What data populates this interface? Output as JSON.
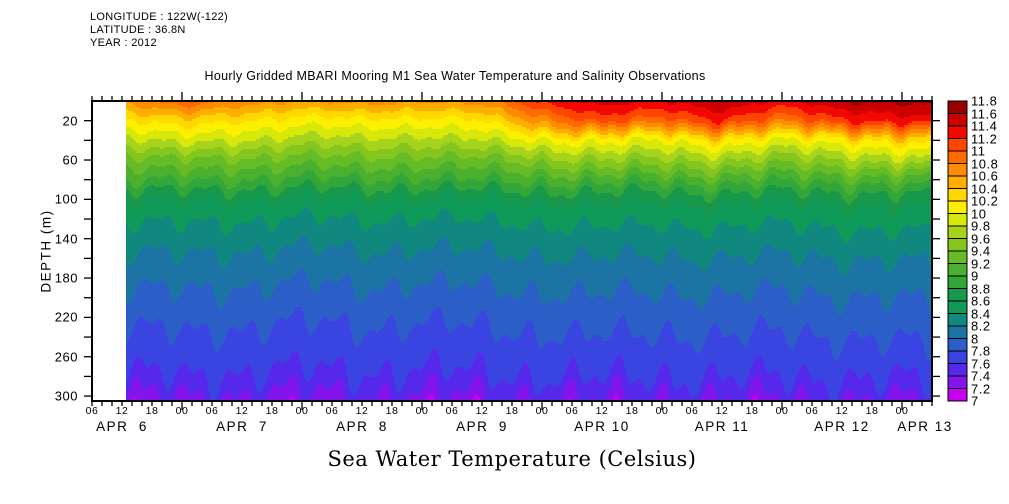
{
  "page": {
    "background": "#FFFFFF"
  },
  "header": {
    "lines": [
      "LONGITUDE : 122W(-122)",
      "LATITUDE : 36.8N",
      "YEAR : 2012"
    ]
  },
  "title": "Hourly Gridded MBARI Mooring M1 Sea Water Temperature and Salinity Observations",
  "footer_label": "Sea Water Temperature (Celsius)",
  "y_axis": {
    "title": "DEPTH (m)",
    "tick_labels": [
      "20",
      "60",
      "100",
      "140",
      "180",
      "220",
      "260",
      "300"
    ],
    "labeled_step_m": 40,
    "minor_step_m": 20,
    "range_m": [
      0,
      305
    ]
  },
  "x_axis": {
    "hour_labels": [
      "06",
      "12",
      "18",
      "00",
      "06",
      "12",
      "18",
      "00",
      "06",
      "12",
      "18",
      "00",
      "06",
      "12",
      "18",
      "00",
      "06",
      "12",
      "18",
      "00",
      "06",
      "12",
      "18",
      "00",
      "06",
      "12",
      "18",
      "00"
    ],
    "day_labels": [
      "APR  6",
      "APR  7",
      "APR  8",
      "APR  9",
      "APR 10",
      "APR 11",
      "APR 12",
      "APR 13"
    ],
    "label_step_h": 6,
    "minor_tick_h": 2,
    "day_tick_h": 24
  },
  "colorbar": {
    "min": 7,
    "max": 11.8,
    "step": 0.2,
    "labels_top_to_bottom": [
      "11.8",
      "11.6",
      "11.4",
      "11.2",
      "11",
      "10.8",
      "10.6",
      "10.4",
      "10.2",
      "10",
      "9.8",
      "9.6",
      "9.4",
      "9.2",
      "9",
      "8.8",
      "8.6",
      "8.4",
      "8.2",
      "8",
      "7.8",
      "7.6",
      "7.4",
      "7.2",
      "7"
    ],
    "colors_low_to_high": [
      "#C800F0",
      "#8414EC",
      "#5528EC",
      "#3A44E0",
      "#2C5EC8",
      "#1C74A4",
      "#108880",
      "#109A5A",
      "#17984A",
      "#32A638",
      "#4AB02E",
      "#66BC26",
      "#84C61E",
      "#A6D41C",
      "#D8E80A",
      "#FCF000",
      "#FFD800",
      "#FFAE00",
      "#FF8C00",
      "#FF6A00",
      "#FF4400",
      "#F20800",
      "#CC0000",
      "#990000"
    ]
  },
  "chart_data": {
    "type": "heatmap",
    "title": "Hourly Gridded MBARI Mooring M1 Sea Water Temperature and Salinity Observations",
    "ylabel": "DEPTH (m)",
    "value_label": "Sea Water Temperature (Celsius)",
    "value_range": [
      7,
      11.8
    ],
    "contour_interval_c": 0.2,
    "year": 2012,
    "month": "APR",
    "time_span": {
      "start": "APR 6 06:00",
      "data_start": "APR 6 13:00",
      "end": "APR 13 06:00"
    },
    "time_grid_hours": [
      12,
      24,
      36,
      48,
      60,
      72,
      84,
      96,
      108,
      120,
      132,
      144,
      156,
      168,
      180
    ],
    "data_gap_before_hour": 13,
    "axis_start_hour": 6,
    "depths_m": [
      0,
      20,
      40,
      60,
      80,
      100,
      120,
      140,
      160,
      180,
      200,
      220,
      240,
      260,
      280,
      300
    ],
    "temps_c": [
      [
        10.6,
        11.0,
        10.7,
        10.6,
        10.7,
        10.6,
        10.7,
        11.25,
        11.5,
        11.4,
        11.6,
        11.35,
        11.6,
        11.65,
        11.7
      ],
      [
        10.15,
        10.35,
        10.2,
        10.1,
        10.15,
        10.1,
        10.2,
        10.7,
        11.1,
        10.9,
        11.2,
        10.85,
        11.15,
        11.3,
        11.4
      ],
      [
        9.7,
        9.9,
        9.8,
        9.7,
        9.75,
        9.7,
        9.8,
        10.0,
        10.1,
        10.0,
        10.2,
        10.0,
        10.1,
        10.3,
        10.4
      ],
      [
        9.3,
        9.4,
        9.35,
        9.3,
        9.35,
        9.3,
        9.35,
        9.5,
        9.6,
        9.55,
        9.65,
        9.5,
        9.6,
        9.75,
        9.85
      ],
      [
        9.0,
        9.05,
        9.0,
        8.95,
        9.0,
        8.95,
        9.0,
        9.05,
        9.1,
        9.05,
        9.12,
        9.05,
        9.08,
        9.15,
        9.2
      ],
      [
        8.6,
        8.63,
        8.6,
        8.56,
        8.6,
        8.56,
        8.6,
        8.63,
        8.66,
        8.63,
        8.66,
        8.63,
        8.65,
        8.7,
        8.72
      ],
      [
        8.42,
        8.44,
        8.42,
        8.38,
        8.42,
        8.38,
        8.42,
        8.44,
        8.46,
        8.44,
        8.46,
        8.44,
        8.46,
        8.5,
        8.52
      ],
      [
        8.28,
        8.3,
        8.28,
        8.25,
        8.28,
        8.25,
        8.28,
        8.3,
        8.32,
        8.3,
        8.32,
        8.3,
        8.32,
        8.35,
        8.36
      ],
      [
        8.16,
        8.18,
        8.16,
        8.13,
        8.16,
        8.13,
        8.16,
        8.18,
        8.2,
        8.18,
        8.2,
        8.18,
        8.2,
        8.22,
        8.24
      ],
      [
        8.05,
        8.07,
        8.05,
        8.02,
        8.05,
        8.02,
        8.05,
        8.07,
        8.09,
        8.07,
        8.09,
        8.07,
        8.09,
        8.11,
        8.12
      ],
      [
        7.95,
        7.97,
        7.95,
        7.92,
        7.95,
        7.92,
        7.95,
        7.97,
        7.99,
        7.97,
        7.99,
        7.97,
        7.99,
        8.01,
        8.02
      ],
      [
        7.85,
        7.87,
        7.85,
        7.82,
        7.85,
        7.82,
        7.85,
        7.87,
        7.89,
        7.87,
        7.89,
        7.87,
        7.89,
        7.91,
        7.92
      ],
      [
        7.76,
        7.78,
        7.76,
        7.73,
        7.76,
        7.73,
        7.76,
        7.78,
        7.8,
        7.78,
        7.8,
        7.78,
        7.8,
        7.82,
        7.83
      ],
      [
        7.7,
        7.72,
        7.7,
        7.67,
        7.7,
        7.67,
        7.7,
        7.72,
        7.74,
        7.72,
        7.74,
        7.72,
        7.74,
        7.76,
        7.77
      ],
      [
        7.58,
        7.6,
        7.58,
        7.55,
        7.58,
        7.55,
        7.58,
        7.6,
        7.62,
        7.6,
        7.62,
        7.6,
        7.62,
        7.64,
        7.65
      ],
      [
        7.4,
        7.42,
        7.4,
        7.38,
        7.4,
        7.38,
        7.4,
        7.42,
        7.44,
        7.42,
        7.44,
        7.42,
        7.44,
        7.46,
        7.47
      ]
    ],
    "internal_wave_pattern": {
      "amp_base_m": 3,
      "amp_per_m": 0.075,
      "components": [
        {
          "period_h": 9.5,
          "weight": 0.5
        },
        {
          "period_h": 4.6,
          "weight": 0.35
        },
        {
          "period_h": 30,
          "weight": 0.25
        }
      ],
      "depth_phase": [
        0.012,
        0.02,
        0.005
      ]
    }
  }
}
